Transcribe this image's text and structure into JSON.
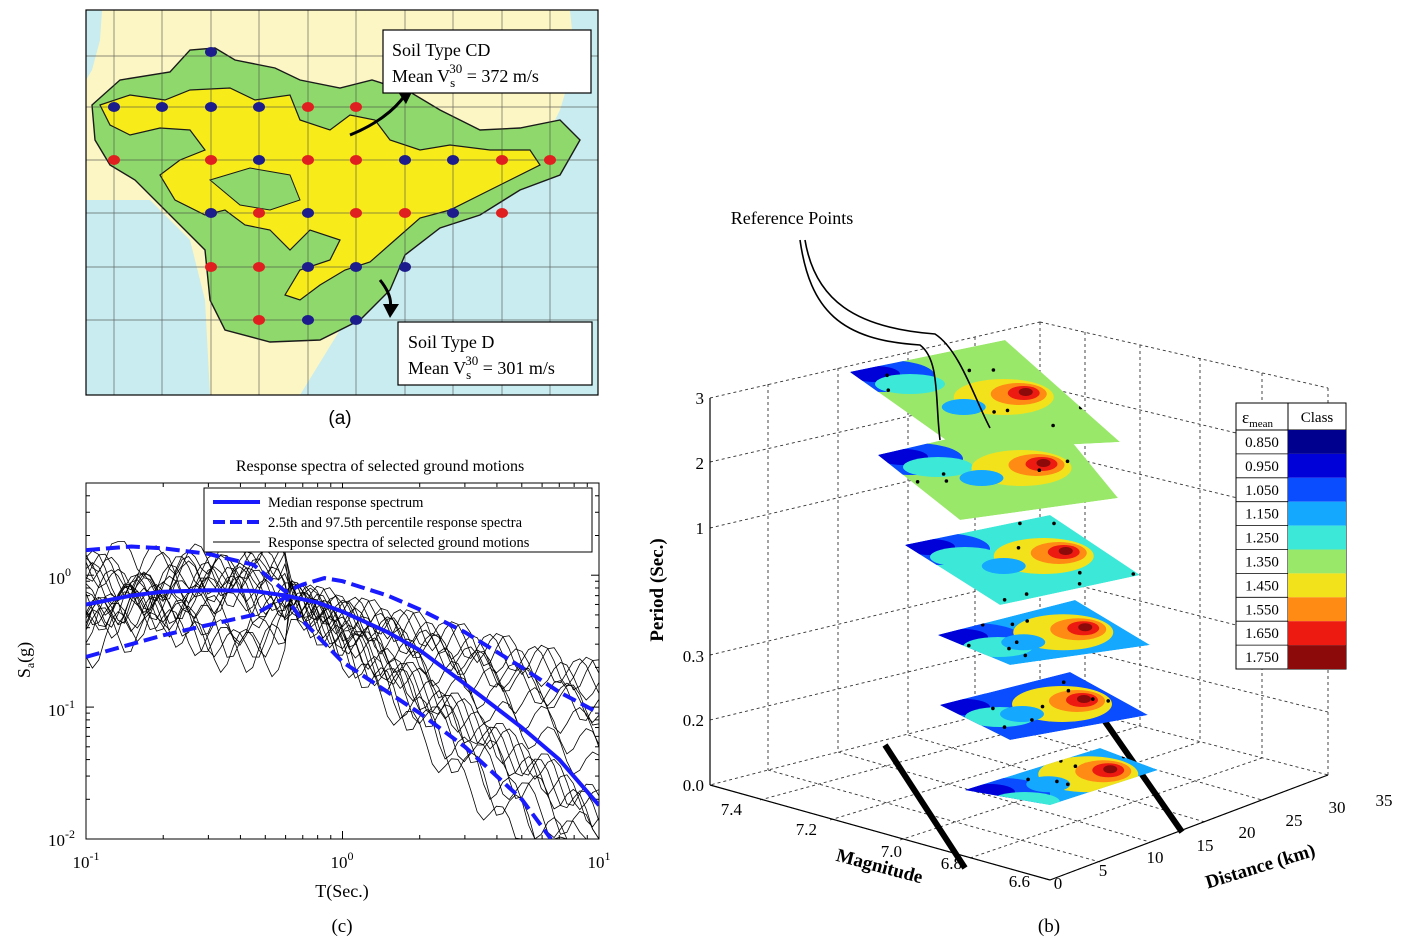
{
  "panel_a": {
    "caption": "(a)",
    "box_cd": {
      "line1": "Soil Type CD",
      "line2_prefix": "Mean V",
      "sub": "s",
      "sup": "30",
      "line2_suffix": " = 372 m/s"
    },
    "box_d": {
      "line1": "Soil Type D",
      "line2_prefix": "Mean V",
      "sub": "s",
      "sup": "30",
      "line2_suffix": " = 301 m/s"
    },
    "colors": {
      "sea": "#c8ecf0",
      "land": "#fbf6c4",
      "soil_cd": "#8fd86b",
      "soil_d": "#f7ec19",
      "point_red": "#e02020",
      "point_blue": "#1c1c8c"
    }
  },
  "panel_b": {
    "caption": "(b)",
    "annotation": "Reference Points",
    "colorbar": {
      "header_sym": "ε",
      "header_sub": "mean",
      "header_class": "Class"
    },
    "z_axis_label": "Period (Sec.)",
    "z_ticks": [
      "0.0",
      "0.2",
      "0.3",
      "1",
      "2",
      "3"
    ],
    "x_axis_label": "Magnitude",
    "x_ticks": [
      "7.4",
      "7.2",
      "7.0",
      "6.8",
      "6.6"
    ],
    "y_axis_label": "Distance (km)",
    "y_ticks": [
      "0",
      "5",
      "10",
      "15",
      "20",
      "25",
      "30",
      "35"
    ]
  },
  "panel_c": {
    "caption": "(c)",
    "title": "Response spectra of selected ground motions",
    "xlabel": "T(Sec.)",
    "ylabel_main": "S",
    "ylabel_sub": "a",
    "ylabel_tail": "(g)",
    "x_ticks": [
      {
        "base": "10",
        "exp": "-1"
      },
      {
        "base": "10",
        "exp": "0"
      },
      {
        "base": "10",
        "exp": "1"
      }
    ],
    "y_ticks": [
      {
        "base": "10",
        "exp": "-2"
      },
      {
        "base": "10",
        "exp": "-1"
      },
      {
        "base": "10",
        "exp": "0"
      }
    ],
    "legend": [
      "Median response spectrum",
      "2.5th and 97.5th percentile response spectra",
      "Response spectra of selected ground motions"
    ]
  },
  "chart_data": [
    {
      "type": "line",
      "title": "Response spectra of selected ground motions",
      "xlabel": "T(Sec.)",
      "ylabel": "Sa(g)",
      "xscale": "log",
      "yscale": "log",
      "xlim": [
        0.1,
        10
      ],
      "ylim": [
        0.01,
        5
      ],
      "legend_position": "top-right",
      "series": [
        {
          "name": "Median response spectrum",
          "color": "#1a1aff",
          "style": "solid-thick",
          "x": [
            0.1,
            0.15,
            0.2,
            0.3,
            0.45,
            0.6,
            0.8,
            1.0,
            1.5,
            2.0,
            3.0,
            5.0,
            7.0,
            10.0
          ],
          "y": [
            0.6,
            0.7,
            0.75,
            0.77,
            0.76,
            0.7,
            0.62,
            0.53,
            0.37,
            0.27,
            0.15,
            0.07,
            0.04,
            0.018
          ]
        },
        {
          "name": "2.5th and 97.5th percentile response spectra",
          "color": "#1a1aff",
          "style": "dashed-thick",
          "x": [
            0.1,
            0.15,
            0.2,
            0.3,
            0.45,
            0.6,
            0.7,
            0.85,
            1.0,
            1.5,
            2.0,
            3.0,
            5.0,
            7.0,
            10.0
          ],
          "y": [
            1.55,
            1.65,
            1.6,
            1.45,
            1.2,
            0.75,
            0.85,
            0.95,
            0.9,
            0.7,
            0.55,
            0.37,
            0.2,
            0.13,
            0.09
          ]
        },
        {
          "name": "2.5th and 97.5th percentile response spectra",
          "color": "#1a1aff",
          "style": "dashed-thick",
          "x": [
            0.1,
            0.15,
            0.2,
            0.3,
            0.45,
            0.6,
            0.7,
            1.0,
            1.5,
            2.0,
            3.0,
            5.0,
            6.5
          ],
          "y": [
            0.24,
            0.3,
            0.35,
            0.42,
            0.5,
            0.68,
            0.45,
            0.22,
            0.13,
            0.09,
            0.05,
            0.02,
            0.01
          ]
        },
        {
          "name": "Response spectra of selected ground motions",
          "color": "#000000",
          "style": "thin",
          "count": 20,
          "x_range": [
            0.1,
            10
          ],
          "y_range": [
            0.01,
            1.8
          ]
        }
      ]
    },
    {
      "type": "heatmap",
      "title": "",
      "xlabel": "Magnitude",
      "ylabel": "Distance (km)",
      "zlabel": "Period (Sec.)",
      "x_range": [
        6.6,
        7.4
      ],
      "y_range": [
        0,
        35
      ],
      "period_levels": [
        0.0,
        0.2,
        0.3,
        1,
        2,
        3
      ],
      "colorbar": {
        "classes": [
          "0.850",
          "0.950",
          "1.050",
          "1.150",
          "1.250",
          "1.350",
          "1.450",
          "1.550",
          "1.650",
          "1.750"
        ],
        "colors": [
          "#00008f",
          "#0000d8",
          "#0a4cff",
          "#14a8ff",
          "#3ce8d8",
          "#9ae86a",
          "#f2e21c",
          "#ff8a14",
          "#ec1a10",
          "#8c0a0a"
        ]
      }
    }
  ]
}
